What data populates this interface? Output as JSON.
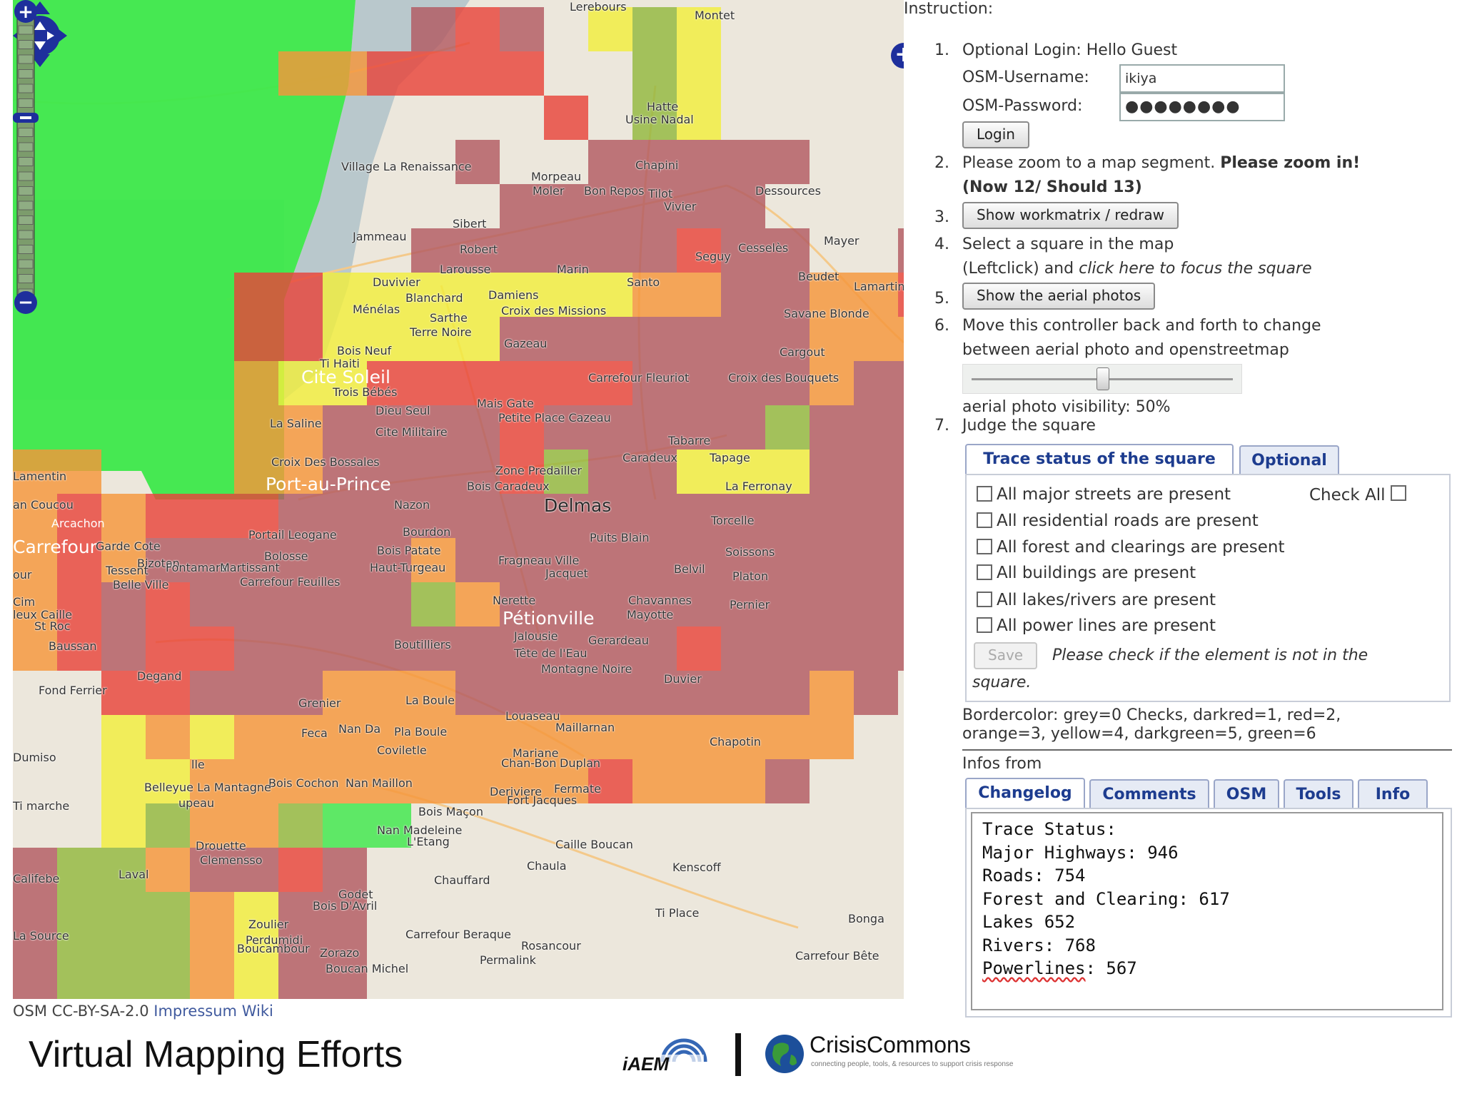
{
  "map": {
    "places": [
      {
        "name": "Lerebours"
      },
      {
        "name": "Montet"
      },
      {
        "name": "Hatte"
      },
      {
        "name": "Usine Nadal"
      },
      {
        "name": "Village La Renaissance"
      },
      {
        "name": "Chapini"
      },
      {
        "name": "Morpeau"
      },
      {
        "name": "Moler"
      },
      {
        "name": "Bon Repos"
      },
      {
        "name": "Tilot"
      },
      {
        "name": "Vivier"
      },
      {
        "name": "Dessources"
      },
      {
        "name": "Sibert"
      },
      {
        "name": "Jammeau"
      },
      {
        "name": "Robert"
      },
      {
        "name": "Larousse"
      },
      {
        "name": "Marin"
      },
      {
        "name": "Seguy"
      },
      {
        "name": "Cesselès"
      },
      {
        "name": "Mayer"
      },
      {
        "name": "Beudet"
      },
      {
        "name": "Lamartinière"
      },
      {
        "name": "Duvivier"
      },
      {
        "name": "Blanchard"
      },
      {
        "name": "Damiens"
      },
      {
        "name": "Ménélas"
      },
      {
        "name": "Sarthe"
      },
      {
        "name": "Croix des Missions"
      },
      {
        "name": "Santo"
      },
      {
        "name": "Savane Blonde"
      },
      {
        "name": "Terre Noire"
      },
      {
        "name": "Gazeau"
      },
      {
        "name": "Bois Neuf"
      },
      {
        "name": "Ti Haiti"
      },
      {
        "name": "Cite Soleil"
      },
      {
        "name": "Cargout"
      },
      {
        "name": "Carrefour Fleuriot"
      },
      {
        "name": "Croix des Bouquets"
      },
      {
        "name": "Trois Bébés"
      },
      {
        "name": "Dieu Seul"
      },
      {
        "name": "Mais Gate"
      },
      {
        "name": "Petite Place Cazeau"
      },
      {
        "name": "La Saline"
      },
      {
        "name": "Cite Militaire"
      },
      {
        "name": "Tabarre"
      },
      {
        "name": "Caradeux"
      },
      {
        "name": "Tapage"
      },
      {
        "name": "Croix Des Bossales"
      },
      {
        "name": "Zone Predailler"
      },
      {
        "name": "Lamentin"
      },
      {
        "name": "Port-au-Prince"
      },
      {
        "name": "Bois Caradeux"
      },
      {
        "name": "La Ferronay"
      },
      {
        "name": "Nazon"
      },
      {
        "name": "Delmas"
      },
      {
        "name": "an Coucou"
      },
      {
        "name": "Torcelle"
      },
      {
        "name": "Arcachon"
      },
      {
        "name": "Bourdon"
      },
      {
        "name": "Puits Blain"
      },
      {
        "name": "Carrefour"
      },
      {
        "name": "Garde Cote"
      },
      {
        "name": "Portail Leogane"
      },
      {
        "name": "Bois Patate"
      },
      {
        "name": "Soissons"
      },
      {
        "name": "Bizoton"
      },
      {
        "name": "Fontamara"
      },
      {
        "name": "Martissant"
      },
      {
        "name": "Bolosse"
      },
      {
        "name": "Fragneau Ville"
      },
      {
        "name": "our"
      },
      {
        "name": "Tessent"
      },
      {
        "name": "Haut-Turgeau"
      },
      {
        "name": "Jacquet"
      },
      {
        "name": "Belvil"
      },
      {
        "name": "Platon"
      },
      {
        "name": "Belle Ville"
      },
      {
        "name": "Carrefour Feuilles"
      },
      {
        "name": "Cim"
      },
      {
        "name": "Nerette"
      },
      {
        "name": "Chavannes"
      },
      {
        "name": "leux Caille"
      },
      {
        "name": "Mayotte"
      },
      {
        "name": "Pernier"
      },
      {
        "name": "St Roc"
      },
      {
        "name": "Pétionville"
      },
      {
        "name": "Baussan"
      },
      {
        "name": "Jalousie"
      },
      {
        "name": "Boutilliers"
      },
      {
        "name": "Gerardeau"
      },
      {
        "name": "Tête de l'Eau"
      },
      {
        "name": "Degand"
      },
      {
        "name": "Montagne Noire"
      },
      {
        "name": "Fond Ferrier"
      },
      {
        "name": "Duvier"
      },
      {
        "name": "Grenier"
      },
      {
        "name": "La Boule"
      },
      {
        "name": "Louaseau"
      },
      {
        "name": "Maillarnan"
      },
      {
        "name": "Nan Da"
      },
      {
        "name": "Pla Boule"
      },
      {
        "name": "Feca"
      },
      {
        "name": "Chapotin"
      },
      {
        "name": "Coviletle"
      },
      {
        "name": "Mariane"
      },
      {
        "name": "Chan-Bon"
      },
      {
        "name": "Duplan"
      },
      {
        "name": "Dumiso"
      },
      {
        "name": "lle"
      },
      {
        "name": "Bois Cochon"
      },
      {
        "name": "Nan Maillon"
      },
      {
        "name": "Deriviere"
      },
      {
        "name": "Fermate"
      },
      {
        "name": "Fort Jacques"
      },
      {
        "name": "Belleyue La Mantagne"
      },
      {
        "name": "Ti marche"
      },
      {
        "name": "upeau"
      },
      {
        "name": "Bois Maçon"
      },
      {
        "name": "Nan Madeleine"
      },
      {
        "name": "L'Etang"
      },
      {
        "name": "Caille Boucan"
      },
      {
        "name": "Drouette"
      },
      {
        "name": "Clemensso"
      },
      {
        "name": "Chaula"
      },
      {
        "name": "Kenscoff"
      },
      {
        "name": "Califebe"
      },
      {
        "name": "Laval"
      },
      {
        "name": "Chauffard"
      },
      {
        "name": "Godet"
      },
      {
        "name": "Bois D'Avril"
      },
      {
        "name": "Ti Place"
      },
      {
        "name": "Zoulier"
      },
      {
        "name": "Bonga"
      },
      {
        "name": "Perdumidi"
      },
      {
        "name": "La Source"
      },
      {
        "name": "Carrefour Beraque"
      },
      {
        "name": "Rosancour"
      },
      {
        "name": "Boucambour"
      },
      {
        "name": "Zorazo"
      },
      {
        "name": "Permalink"
      },
      {
        "name": "Carrefour Bête"
      },
      {
        "name": "Boucan Michel"
      }
    ],
    "zoom_plus": "+",
    "zoom_minus": "−",
    "zoom_level": 12,
    "colors": {
      "dark_red": "#b25a61",
      "red": "#e8443b",
      "orange": "#f5963a",
      "yellow": "#f2ee3d",
      "dark_green": "#93b83e",
      "green": "#3ee84c",
      "water": "#b9c8cc"
    }
  },
  "credits": {
    "license": "OSM CC-BY-SA-2.0",
    "impressum": "Impressum",
    "wiki": "Wiki"
  },
  "panel": {
    "instruction": "Instruction:",
    "steps": [
      "1.",
      "2.",
      "3.",
      "4.",
      "5.",
      "6.",
      "7."
    ],
    "login": {
      "title": "Optional Login: Hello Guest",
      "user_label": "OSM-Username:",
      "user_value": "ikiya",
      "pass_label": "OSM-Password:",
      "pass_value": "●●●●●●●●",
      "button": "Login"
    },
    "zoom": {
      "text": "Please zoom to a map segment.",
      "bold": "Please zoom in!",
      "status": "(Now 12/ Should 13)"
    },
    "workmatrix_button": "Show workmatrix / redraw",
    "select": {
      "line1": "Select a square in the map",
      "line2_a": "(Leftclick) and",
      "line2_link": "click here to focus the square"
    },
    "aerial_button": "Show the aerial photos",
    "controller": {
      "line1": "Move this controller back and forth to change",
      "line2": "between aerial photo and openstreetmap",
      "visibility_label": "aerial photo visibility:",
      "visibility_value": "50%",
      "visibility_fraction": 0.5
    },
    "judge": "Judge the square",
    "tabs": [
      "Trace status of the square",
      "Optional"
    ],
    "check_all": "Check All",
    "checks": [
      "All major streets are present",
      "All residential roads are present",
      "All forest and clearings are present",
      "All buildings are present",
      "All lakes/rivers are present",
      "All power lines are present"
    ],
    "save_button": "Save",
    "save_hint_a": "Please check if the element is not in the",
    "save_hint_b": "square.",
    "border_legend_1": "Bordercolor: grey=0 Checks, darkred=1, red=2,",
    "border_legend_2": "orange=3, yellow=4, darkgreen=5, green=6",
    "infos_from": "Infos from",
    "info_tabs": [
      "Changelog",
      "Comments",
      "OSM",
      "Tools",
      "Info"
    ],
    "log": {
      "line1": "Trace Status:",
      "line2": "Major Highways: 946",
      "line3": "Roads: 754",
      "line4": "Forest and Clearing: 617",
      "line5": "Lakes 652",
      "line6": "Rivers: 768",
      "line7_word": "Powerlines",
      "line7_rest": ": 567"
    }
  },
  "footer": {
    "title": "Virtual Mapping Efforts",
    "iaem": "iAEM",
    "crisis_name": "CrisisCommons",
    "crisis_tagline": "connecting people, tools, & resources to support crisis response"
  }
}
